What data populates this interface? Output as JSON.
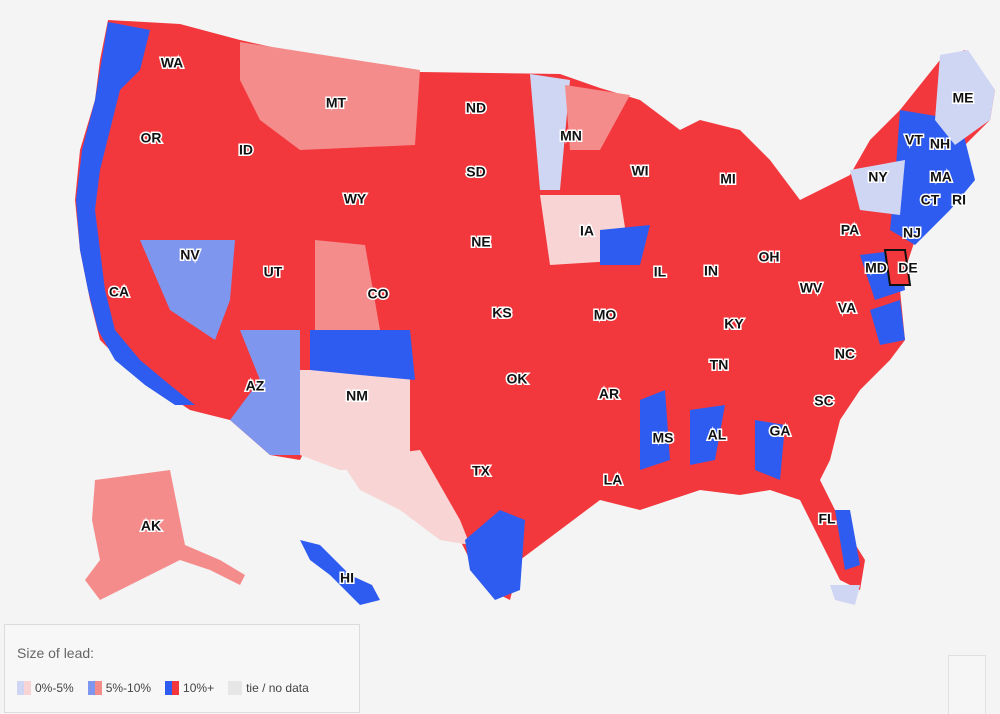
{
  "colors": {
    "background": "#f4f4f4",
    "rep_10": "#f2383d",
    "rep_5_10": "#f58c8c",
    "rep_0_5": "#f8d4d4",
    "dem_10": "#2f5cf0",
    "dem_5_10": "#7f96ee",
    "dem_0_5": "#cfd6f4",
    "tie": "#e6e6e6"
  },
  "legend": {
    "title": "Size of lead:",
    "items": [
      {
        "label": "0%-5%",
        "color_key": "rep_0_5",
        "color_key_alt": "dem_0_5"
      },
      {
        "label": "5%-10%",
        "color_key": "rep_5_10",
        "color_key_alt": "dem_5_10"
      },
      {
        "label": "10%+",
        "color_key": "rep_10",
        "color_key_alt": "dem_10"
      },
      {
        "label": "tie / no data",
        "color_key": "tie"
      }
    ]
  },
  "states": [
    {
      "abbr": "WA",
      "lead": "dem_10"
    },
    {
      "abbr": "OR",
      "lead": "rep_10"
    },
    {
      "abbr": "CA",
      "lead": "dem_10"
    },
    {
      "abbr": "ID",
      "lead": "rep_10"
    },
    {
      "abbr": "NV",
      "lead": "dem_5_10"
    },
    {
      "abbr": "UT",
      "lead": "rep_10"
    },
    {
      "abbr": "AZ",
      "lead": "rep_10"
    },
    {
      "abbr": "MT",
      "lead": "rep_5_10"
    },
    {
      "abbr": "WY",
      "lead": "rep_10"
    },
    {
      "abbr": "CO",
      "lead": "rep_10"
    },
    {
      "abbr": "NM",
      "lead": "rep_0_5"
    },
    {
      "abbr": "ND",
      "lead": "rep_10"
    },
    {
      "abbr": "SD",
      "lead": "rep_10"
    },
    {
      "abbr": "NE",
      "lead": "rep_10"
    },
    {
      "abbr": "KS",
      "lead": "rep_10"
    },
    {
      "abbr": "OK",
      "lead": "rep_10"
    },
    {
      "abbr": "TX",
      "lead": "rep_10"
    },
    {
      "abbr": "MN",
      "lead": "dem_0_5"
    },
    {
      "abbr": "IA",
      "lead": "rep_0_5"
    },
    {
      "abbr": "MO",
      "lead": "rep_10"
    },
    {
      "abbr": "AR",
      "lead": "rep_10"
    },
    {
      "abbr": "LA",
      "lead": "rep_10"
    },
    {
      "abbr": "WI",
      "lead": "rep_10"
    },
    {
      "abbr": "IL",
      "lead": "rep_10"
    },
    {
      "abbr": "MS",
      "lead": "rep_10"
    },
    {
      "abbr": "MI",
      "lead": "rep_10"
    },
    {
      "abbr": "IN",
      "lead": "rep_10"
    },
    {
      "abbr": "KY",
      "lead": "rep_10"
    },
    {
      "abbr": "TN",
      "lead": "rep_10"
    },
    {
      "abbr": "AL",
      "lead": "rep_10"
    },
    {
      "abbr": "OH",
      "lead": "rep_10"
    },
    {
      "abbr": "WV",
      "lead": "rep_10"
    },
    {
      "abbr": "GA",
      "lead": "rep_10"
    },
    {
      "abbr": "FL",
      "lead": "rep_10"
    },
    {
      "abbr": "SC",
      "lead": "rep_10"
    },
    {
      "abbr": "NC",
      "lead": "rep_10"
    },
    {
      "abbr": "VA",
      "lead": "rep_10"
    },
    {
      "abbr": "PA",
      "lead": "rep_10"
    },
    {
      "abbr": "NY",
      "lead": "dem_0_5"
    },
    {
      "abbr": "MD",
      "lead": "dem_10"
    },
    {
      "abbr": "DE",
      "lead": "rep_10"
    },
    {
      "abbr": "NJ",
      "lead": "dem_10"
    },
    {
      "abbr": "CT",
      "lead": "dem_10"
    },
    {
      "abbr": "RI",
      "lead": "dem_10"
    },
    {
      "abbr": "MA",
      "lead": "dem_10"
    },
    {
      "abbr": "VT",
      "lead": "dem_10"
    },
    {
      "abbr": "NH",
      "lead": "dem_10"
    },
    {
      "abbr": "ME",
      "lead": "dem_0_5"
    },
    {
      "abbr": "AK",
      "lead": "rep_5_10"
    },
    {
      "abbr": "HI",
      "lead": "dem_10"
    }
  ]
}
